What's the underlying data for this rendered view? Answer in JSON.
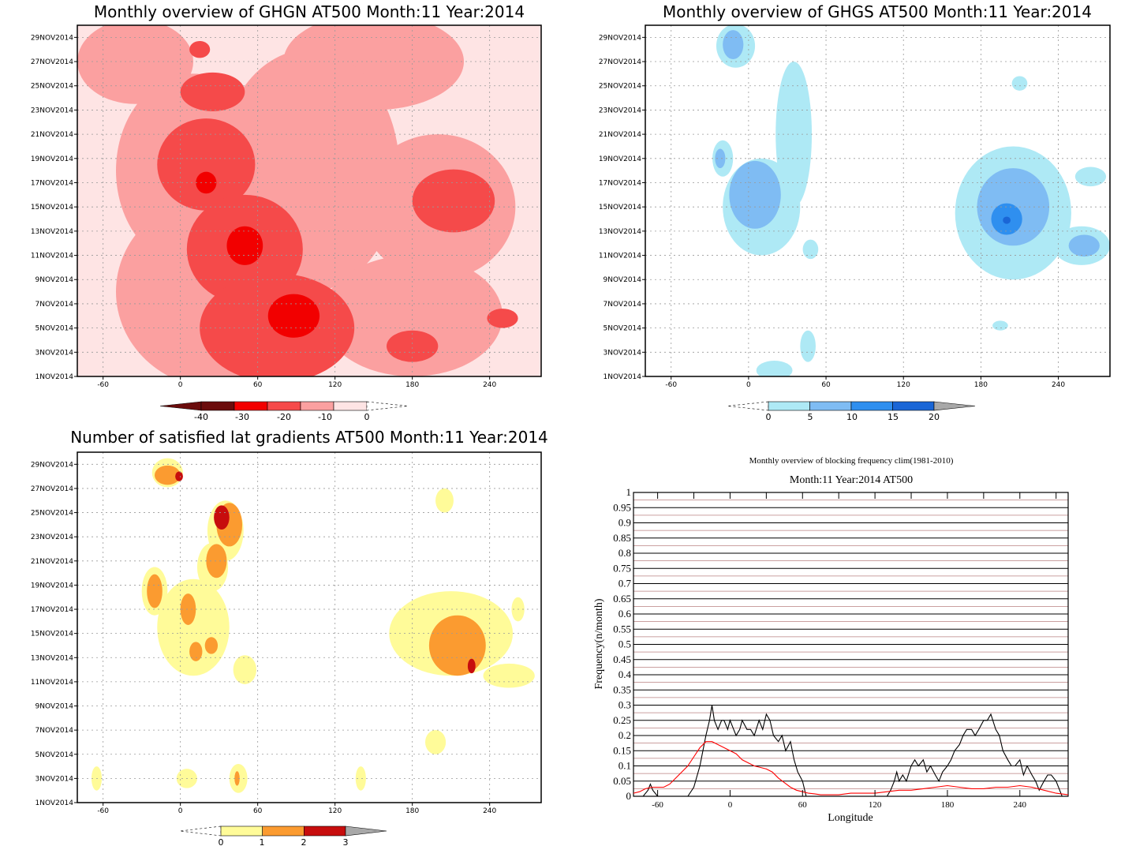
{
  "colors": {
    "ghgn": [
      "#6b0c0c",
      "#f20000",
      "#f54a4a",
      "#fba0a0",
      "#fee4e4",
      "#ffffff"
    ],
    "ghgs": [
      "#ffffff",
      "#aee9f5",
      "#7fbcf3",
      "#2f8fef",
      "#1a66d6",
      "#a8a8a8"
    ],
    "sat": [
      "#ffffff",
      "#fffb99",
      "#fb9b30",
      "#c70d0d",
      "#a8a8a8"
    ],
    "black_line": "#000000",
    "red_line": "#ff0000",
    "grid_red": "#b98080"
  },
  "chart_data": [
    {
      "type": "heatmap",
      "title": "Monthly overview of GHGN AT500 Month:11 Year:2014",
      "x_ticks": [
        "-60",
        "0",
        "60",
        "120",
        "180",
        "240"
      ],
      "x_tick_values": [
        -60,
        0,
        60,
        120,
        180,
        240
      ],
      "xlim": [
        -80,
        280
      ],
      "y_ticks": [
        "1NOV2014",
        "3NOV2014",
        "5NOV2014",
        "7NOV2014",
        "9NOV2014",
        "11NOV2014",
        "13NOV2014",
        "15NOV2014",
        "17NOV2014",
        "19NOV2014",
        "21NOV2014",
        "23NOV2014",
        "25NOV2014",
        "27NOV2014",
        "29NOV2014"
      ],
      "ylim": [
        1,
        30
      ],
      "colorbar": {
        "labels": [
          "-40",
          "-30",
          "-20",
          "-10",
          "0"
        ],
        "left_arrow": true,
        "right_arrow": false
      },
      "contours": [
        {
          "level": 3,
          "cx": -35,
          "cy": 27,
          "rx": 45,
          "ry": 3.5
        },
        {
          "level": 4,
          "cx": 20,
          "cy": 28,
          "rx": 40,
          "ry": 3
        },
        {
          "level": 3,
          "cx": 150,
          "cy": 27,
          "rx": 70,
          "ry": 4
        },
        {
          "level": 3,
          "cx": 100,
          "cy": 18,
          "rx": 70,
          "ry": 10
        },
        {
          "level": 3,
          "cx": 10,
          "cy": 18,
          "rx": 60,
          "ry": 8
        },
        {
          "level": 3,
          "cx": 200,
          "cy": 15,
          "rx": 60,
          "ry": 6
        },
        {
          "level": 3,
          "cx": 30,
          "cy": 8,
          "rx": 80,
          "ry": 8
        },
        {
          "level": 3,
          "cx": 180,
          "cy": 6,
          "rx": 70,
          "ry": 5
        },
        {
          "level": 2,
          "cx": 20,
          "cy": 18.5,
          "rx": 38,
          "ry": 3.8
        },
        {
          "level": 2,
          "cx": 25,
          "cy": 24.5,
          "rx": 25,
          "ry": 1.6
        },
        {
          "level": 2,
          "cx": 212,
          "cy": 15.5,
          "rx": 32,
          "ry": 2.6
        },
        {
          "level": 2,
          "cx": 50,
          "cy": 11.5,
          "rx": 45,
          "ry": 4.5
        },
        {
          "level": 2,
          "cx": 75,
          "cy": 5,
          "rx": 60,
          "ry": 4.5
        },
        {
          "level": 2,
          "cx": 180,
          "cy": 3.5,
          "rx": 20,
          "ry": 1.3
        },
        {
          "level": 2,
          "cx": 250,
          "cy": 5.8,
          "rx": 12,
          "ry": 0.8
        },
        {
          "level": 2,
          "cx": 15,
          "cy": 28,
          "rx": 8,
          "ry": 0.7
        },
        {
          "level": 1,
          "cx": 20,
          "cy": 17,
          "rx": 8,
          "ry": 0.9
        },
        {
          "level": 1,
          "cx": 50,
          "cy": 11.8,
          "rx": 14,
          "ry": 1.6
        },
        {
          "level": 1,
          "cx": 88,
          "cy": 6,
          "rx": 20,
          "ry": 1.8
        }
      ]
    },
    {
      "type": "heatmap",
      "title": "Monthly overview of GHGS AT500 Month:11 Year:2014",
      "x_ticks": [
        "-60",
        "0",
        "60",
        "120",
        "180",
        "240"
      ],
      "x_tick_values": [
        -60,
        0,
        60,
        120,
        180,
        240
      ],
      "xlim": [
        -80,
        280
      ],
      "y_ticks": [
        "1NOV2014",
        "3NOV2014",
        "5NOV2014",
        "7NOV2014",
        "9NOV2014",
        "11NOV2014",
        "13NOV2014",
        "15NOV2014",
        "17NOV2014",
        "19NOV2014",
        "21NOV2014",
        "23NOV2014",
        "25NOV2014",
        "27NOV2014",
        "29NOV2014"
      ],
      "ylim": [
        1,
        30
      ],
      "colorbar": {
        "labels": [
          "0",
          "5",
          "10",
          "15",
          "20"
        ],
        "left_arrow": true,
        "right_arrow": true
      },
      "contours": [
        {
          "level": 1,
          "cx": -10,
          "cy": 28.3,
          "rx": 15,
          "ry": 1.8
        },
        {
          "level": 1,
          "cx": 35,
          "cy": 21,
          "rx": 14,
          "ry": 6
        },
        {
          "level": 1,
          "cx": 10,
          "cy": 15,
          "rx": 30,
          "ry": 4
        },
        {
          "level": 1,
          "cx": -20,
          "cy": 19,
          "rx": 8,
          "ry": 1.5
        },
        {
          "level": 1,
          "cx": 205,
          "cy": 14.5,
          "rx": 45,
          "ry": 5.5
        },
        {
          "level": 1,
          "cx": 258,
          "cy": 11.8,
          "rx": 22,
          "ry": 1.6
        },
        {
          "level": 1,
          "cx": 265,
          "cy": 17.5,
          "rx": 12,
          "ry": 0.8
        },
        {
          "level": 1,
          "cx": 210,
          "cy": 25.2,
          "rx": 6,
          "ry": 0.6
        },
        {
          "level": 1,
          "cx": 48,
          "cy": 11.5,
          "rx": 6,
          "ry": 0.8
        },
        {
          "level": 1,
          "cx": 46,
          "cy": 3.5,
          "rx": 6,
          "ry": 1.3
        },
        {
          "level": 1,
          "cx": 20,
          "cy": 1.5,
          "rx": 14,
          "ry": 0.8
        },
        {
          "level": 1,
          "cx": 195,
          "cy": 5.2,
          "rx": 6,
          "ry": 0.4
        },
        {
          "level": 2,
          "cx": -12,
          "cy": 28.4,
          "rx": 8,
          "ry": 1.2
        },
        {
          "level": 2,
          "cx": 5,
          "cy": 16,
          "rx": 20,
          "ry": 2.8
        },
        {
          "level": 2,
          "cx": -22,
          "cy": 19,
          "rx": 4,
          "ry": 0.8
        },
        {
          "level": 2,
          "cx": 205,
          "cy": 15,
          "rx": 28,
          "ry": 3.2
        },
        {
          "level": 2,
          "cx": 260,
          "cy": 11.8,
          "rx": 12,
          "ry": 0.9
        },
        {
          "level": 3,
          "cx": 200,
          "cy": 14,
          "rx": 12,
          "ry": 1.3
        },
        {
          "level": 4,
          "cx": 200,
          "cy": 13.9,
          "rx": 3,
          "ry": 0.3
        }
      ]
    },
    {
      "type": "heatmap",
      "title": "Number of satisfied lat gradients AT500 Month:11 Year:2014",
      "x_ticks": [
        "-60",
        "0",
        "60",
        "120",
        "180",
        "240"
      ],
      "x_tick_values": [
        -60,
        0,
        60,
        120,
        180,
        240
      ],
      "xlim": [
        -80,
        280
      ],
      "y_ticks": [
        "1NOV2014",
        "3NOV2014",
        "5NOV2014",
        "7NOV2014",
        "9NOV2014",
        "11NOV2014",
        "13NOV2014",
        "15NOV2014",
        "17NOV2014",
        "19NOV2014",
        "21NOV2014",
        "23NOV2014",
        "25NOV2014",
        "27NOV2014",
        "29NOV2014"
      ],
      "ylim": [
        1,
        30
      ],
      "colorbar": {
        "labels": [
          "0",
          "1",
          "2",
          "3"
        ],
        "left_arrow": true,
        "right_arrow": true
      },
      "contours": [
        {
          "level": 1,
          "cx": -10,
          "cy": 28.3,
          "rx": 12,
          "ry": 1.2
        },
        {
          "level": 1,
          "cx": 35,
          "cy": 23.5,
          "rx": 14,
          "ry": 2.5
        },
        {
          "level": 1,
          "cx": 25,
          "cy": 20.5,
          "rx": 12,
          "ry": 2
        },
        {
          "level": 1,
          "cx": -20,
          "cy": 18.5,
          "rx": 10,
          "ry": 2
        },
        {
          "level": 1,
          "cx": 10,
          "cy": 15.5,
          "rx": 28,
          "ry": 4
        },
        {
          "level": 1,
          "cx": 50,
          "cy": 12,
          "rx": 9,
          "ry": 1.2
        },
        {
          "level": 1,
          "cx": 5,
          "cy": 3,
          "rx": 8,
          "ry": 0.8
        },
        {
          "level": 1,
          "cx": 45,
          "cy": 3,
          "rx": 7,
          "ry": 1.2
        },
        {
          "level": 1,
          "cx": -65,
          "cy": 3,
          "rx": 4,
          "ry": 1
        },
        {
          "level": 1,
          "cx": 140,
          "cy": 3,
          "rx": 4,
          "ry": 1
        },
        {
          "level": 1,
          "cx": 198,
          "cy": 6,
          "rx": 8,
          "ry": 1
        },
        {
          "level": 1,
          "cx": 210,
          "cy": 15,
          "rx": 48,
          "ry": 3.5
        },
        {
          "level": 1,
          "cx": 205,
          "cy": 26,
          "rx": 7,
          "ry": 1
        },
        {
          "level": 1,
          "cx": 255,
          "cy": 11.5,
          "rx": 20,
          "ry": 1
        },
        {
          "level": 1,
          "cx": 262,
          "cy": 17,
          "rx": 5,
          "ry": 1
        },
        {
          "level": 2,
          "cx": -10,
          "cy": 28.1,
          "rx": 10,
          "ry": 0.8
        },
        {
          "level": 2,
          "cx": 38,
          "cy": 24,
          "rx": 10,
          "ry": 1.8
        },
        {
          "level": 2,
          "cx": 28,
          "cy": 21,
          "rx": 8,
          "ry": 1.4
        },
        {
          "level": 2,
          "cx": -20,
          "cy": 18.5,
          "rx": 6,
          "ry": 1.4
        },
        {
          "level": 2,
          "cx": 6,
          "cy": 17,
          "rx": 6,
          "ry": 1.3
        },
        {
          "level": 2,
          "cx": 24,
          "cy": 14,
          "rx": 5,
          "ry": 0.7
        },
        {
          "level": 2,
          "cx": 12,
          "cy": 13.5,
          "rx": 5,
          "ry": 0.8
        },
        {
          "level": 2,
          "cx": 215,
          "cy": 14,
          "rx": 22,
          "ry": 2.5
        },
        {
          "level": 2,
          "cx": 44,
          "cy": 3,
          "rx": 2,
          "ry": 0.6
        },
        {
          "level": 3,
          "cx": -1,
          "cy": 28,
          "rx": 3,
          "ry": 0.4
        },
        {
          "level": 3,
          "cx": 32,
          "cy": 24.6,
          "rx": 6,
          "ry": 1
        },
        {
          "level": 3,
          "cx": 226,
          "cy": 12.3,
          "rx": 3,
          "ry": 0.6
        }
      ]
    },
    {
      "type": "line",
      "title": "Monthly overview of blocking frequency clim(1981-2010)",
      "subtitle": "Month:11 Year:2014  AT500",
      "xlabel": "Longitude",
      "ylabel": "Frequency(n/month)",
      "xlim": [
        -80,
        280
      ],
      "ylim": [
        0,
        1
      ],
      "x_ticks": [
        "-60",
        "0",
        "60",
        "120",
        "180",
        "240"
      ],
      "x_tick_values": [
        -60,
        0,
        60,
        120,
        180,
        240
      ],
      "y_ticks": [
        "0",
        "0.05",
        "0.1",
        "0.15",
        "0.2",
        "0.25",
        "0.3",
        "0.35",
        "0.4",
        "0.45",
        "0.5",
        "0.55",
        "0.6",
        "0.65",
        "0.7",
        "0.75",
        "0.8",
        "0.85",
        "0.9",
        "0.95",
        "1"
      ],
      "y_tick_values": [
        0,
        0.05,
        0.1,
        0.15,
        0.2,
        0.25,
        0.3,
        0.35,
        0.4,
        0.45,
        0.5,
        0.55,
        0.6,
        0.65,
        0.7,
        0.75,
        0.8,
        0.85,
        0.9,
        0.95,
        1
      ],
      "series": [
        {
          "color": "#000000",
          "x": [
            -80,
            -72,
            -68,
            -66,
            -64,
            -60,
            -55,
            -50,
            -45,
            -40,
            -35,
            -30,
            -25,
            -20,
            -17,
            -15,
            -13,
            -10,
            -7,
            -5,
            -2,
            0,
            3,
            5,
            8,
            10,
            14,
            17,
            20,
            24,
            27,
            30,
            33,
            36,
            40,
            43,
            46,
            50,
            53,
            56,
            60,
            63,
            66,
            70,
            75,
            80,
            90,
            100,
            110,
            120,
            125,
            130,
            133,
            136,
            138,
            140,
            143,
            146,
            150,
            153,
            156,
            160,
            163,
            166,
            170,
            173,
            176,
            180,
            183,
            186,
            190,
            193,
            196,
            200,
            203,
            206,
            210,
            213,
            216,
            220,
            223,
            226,
            230,
            233,
            236,
            240,
            243,
            246,
            250,
            253,
            256,
            260,
            263,
            266,
            270,
            275,
            280
          ],
          "y": [
            0,
            0,
            0.02,
            0.04,
            0.02,
            0,
            0,
            0,
            0,
            0,
            0,
            0.03,
            0.1,
            0.2,
            0.25,
            0.3,
            0.25,
            0.22,
            0.25,
            0.25,
            0.22,
            0.25,
            0.22,
            0.2,
            0.22,
            0.25,
            0.22,
            0.22,
            0.2,
            0.25,
            0.22,
            0.27,
            0.25,
            0.2,
            0.18,
            0.2,
            0.15,
            0.18,
            0.12,
            0.08,
            0.05,
            0,
            0,
            0,
            0,
            0,
            0,
            0,
            0,
            0,
            0,
            0,
            0.02,
            0.05,
            0.08,
            0.05,
            0.07,
            0.05,
            0.1,
            0.12,
            0.1,
            0.12,
            0.08,
            0.1,
            0.07,
            0.05,
            0.08,
            0.1,
            0.12,
            0.15,
            0.17,
            0.2,
            0.22,
            0.22,
            0.2,
            0.22,
            0.25,
            0.25,
            0.27,
            0.22,
            0.2,
            0.15,
            0.12,
            0.1,
            0.1,
            0.12,
            0.07,
            0.1,
            0.07,
            0.05,
            0.02,
            0.05,
            0.07,
            0.07,
            0.05,
            0,
            0
          ]
        },
        {
          "color": "#ff0000",
          "x": [
            -80,
            -75,
            -70,
            -65,
            -60,
            -55,
            -50,
            -45,
            -40,
            -35,
            -30,
            -25,
            -20,
            -15,
            -10,
            -5,
            0,
            5,
            10,
            15,
            20,
            25,
            30,
            35,
            40,
            45,
            50,
            55,
            60,
            65,
            70,
            75,
            80,
            90,
            100,
            110,
            120,
            130,
            140,
            150,
            160,
            170,
            180,
            190,
            200,
            210,
            220,
            230,
            240,
            250,
            260,
            270,
            280
          ],
          "y": [
            0.01,
            0.015,
            0.025,
            0.03,
            0.03,
            0.03,
            0.04,
            0.06,
            0.08,
            0.1,
            0.13,
            0.16,
            0.18,
            0.18,
            0.17,
            0.16,
            0.15,
            0.14,
            0.12,
            0.11,
            0.1,
            0.095,
            0.09,
            0.08,
            0.06,
            0.045,
            0.03,
            0.02,
            0.015,
            0.01,
            0.008,
            0.005,
            0.005,
            0.005,
            0.01,
            0.01,
            0.01,
            0.015,
            0.02,
            0.02,
            0.025,
            0.03,
            0.035,
            0.03,
            0.025,
            0.025,
            0.03,
            0.03,
            0.035,
            0.03,
            0.02,
            0.01,
            0.005
          ]
        }
      ]
    }
  ]
}
